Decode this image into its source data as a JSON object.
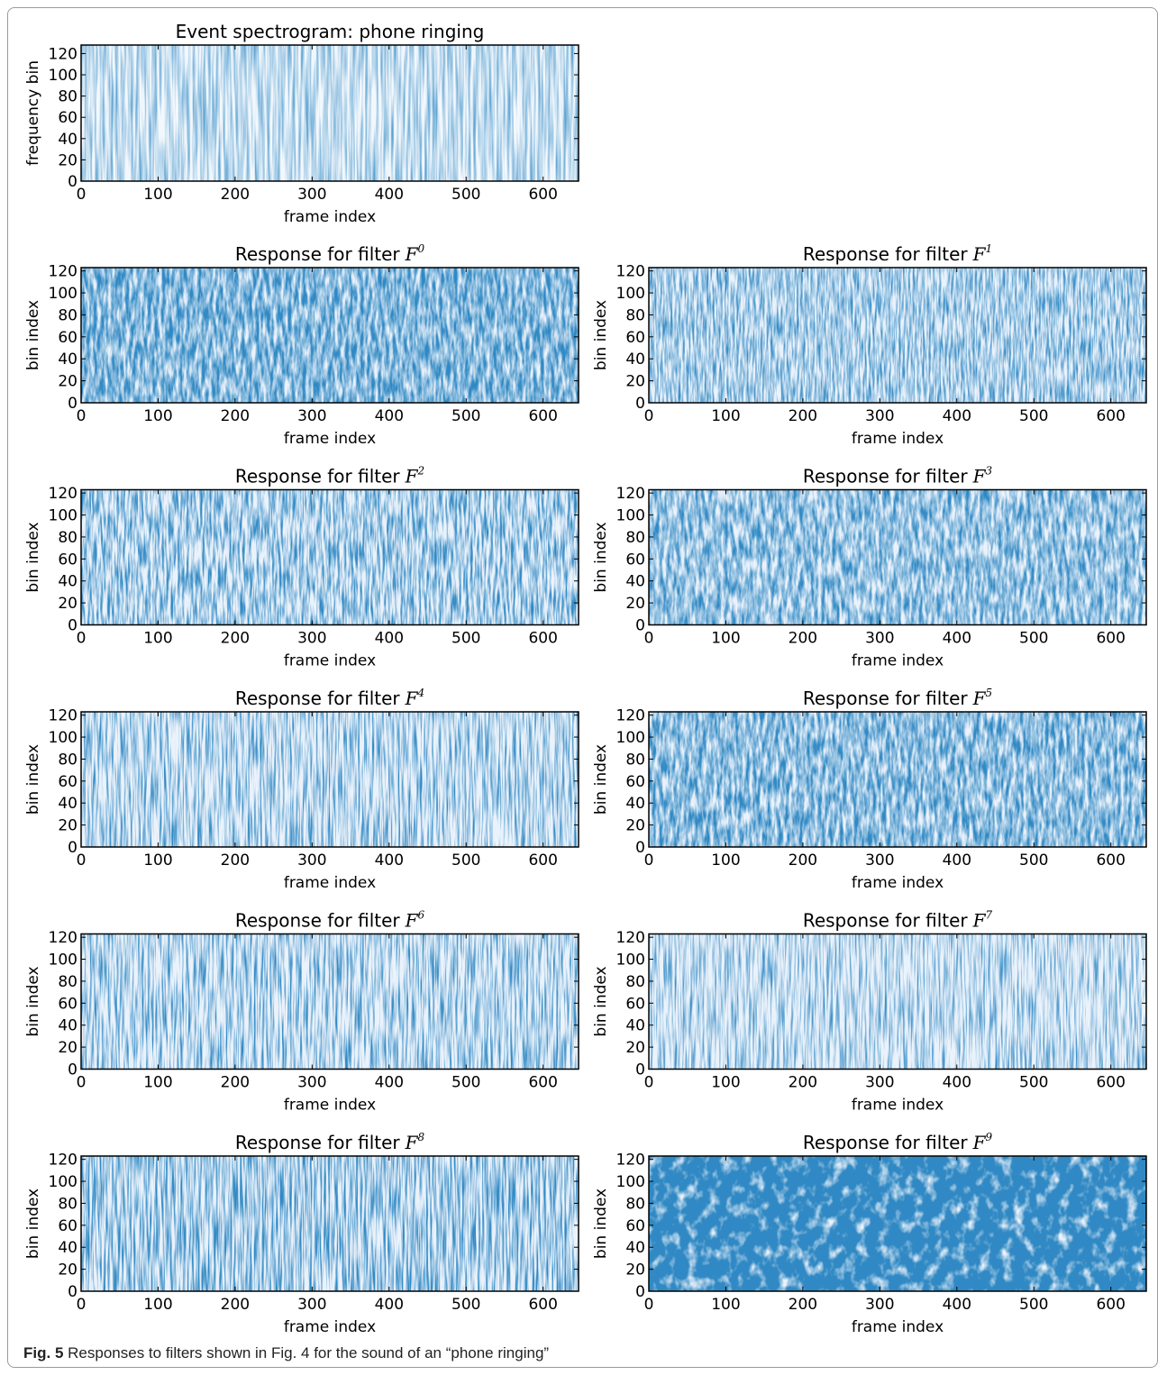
{
  "caption": {
    "label": "Fig. 5",
    "text": "Responses to filters shown in Fig. 4 for the sound of an “phone ringing”"
  },
  "chart_data": [
    {
      "type": "heatmap",
      "title": "Event spectrogram: phone ringing",
      "xlabel": "frame index",
      "ylabel": "frequency bin",
      "xlim": [
        0,
        646
      ],
      "ylim": [
        0,
        128
      ],
      "xticks": [
        0,
        100,
        200,
        300,
        400,
        500,
        600
      ],
      "yticks": [
        0,
        20,
        40,
        60,
        80,
        100,
        120
      ],
      "colormap": "Blues"
    },
    {
      "type": "heatmap",
      "title": "Response for filter",
      "symbol": "F",
      "index": "0",
      "xlabel": "frame index",
      "ylabel": "bin index",
      "xlim": [
        0,
        646
      ],
      "ylim": [
        0,
        123
      ],
      "xticks": [
        0,
        100,
        200,
        300,
        400,
        500,
        600
      ],
      "yticks": [
        0,
        20,
        40,
        60,
        80,
        100,
        120
      ],
      "colormap": "Blues"
    },
    {
      "type": "heatmap",
      "title": "Response for filter",
      "symbol": "F",
      "index": "1",
      "xlabel": "frame index",
      "ylabel": "bin index",
      "xlim": [
        0,
        646
      ],
      "ylim": [
        0,
        123
      ],
      "xticks": [
        0,
        100,
        200,
        300,
        400,
        500,
        600
      ],
      "yticks": [
        0,
        20,
        40,
        60,
        80,
        100,
        120
      ],
      "colormap": "Blues"
    },
    {
      "type": "heatmap",
      "title": "Response for filter",
      "symbol": "F",
      "index": "2",
      "xlabel": "frame index",
      "ylabel": "bin index",
      "xlim": [
        0,
        646
      ],
      "ylim": [
        0,
        123
      ],
      "xticks": [
        0,
        100,
        200,
        300,
        400,
        500,
        600
      ],
      "yticks": [
        0,
        20,
        40,
        60,
        80,
        100,
        120
      ],
      "colormap": "Blues"
    },
    {
      "type": "heatmap",
      "title": "Response for filter",
      "symbol": "F",
      "index": "3",
      "xlabel": "frame index",
      "ylabel": "bin index",
      "xlim": [
        0,
        646
      ],
      "ylim": [
        0,
        123
      ],
      "xticks": [
        0,
        100,
        200,
        300,
        400,
        500,
        600
      ],
      "yticks": [
        0,
        20,
        40,
        60,
        80,
        100,
        120
      ],
      "colormap": "Blues"
    },
    {
      "type": "heatmap",
      "title": "Response for filter",
      "symbol": "F",
      "index": "4",
      "xlabel": "frame index",
      "ylabel": "bin index",
      "xlim": [
        0,
        646
      ],
      "ylim": [
        0,
        123
      ],
      "xticks": [
        0,
        100,
        200,
        300,
        400,
        500,
        600
      ],
      "yticks": [
        0,
        20,
        40,
        60,
        80,
        100,
        120
      ],
      "colormap": "Blues"
    },
    {
      "type": "heatmap",
      "title": "Response for filter",
      "symbol": "F",
      "index": "5",
      "xlabel": "frame index",
      "ylabel": "bin index",
      "xlim": [
        0,
        646
      ],
      "ylim": [
        0,
        123
      ],
      "xticks": [
        0,
        100,
        200,
        300,
        400,
        500,
        600
      ],
      "yticks": [
        0,
        20,
        40,
        60,
        80,
        100,
        120
      ],
      "colormap": "Blues"
    },
    {
      "type": "heatmap",
      "title": "Response for filter",
      "symbol": "F",
      "index": "6",
      "xlabel": "frame index",
      "ylabel": "bin index",
      "xlim": [
        0,
        646
      ],
      "ylim": [
        0,
        123
      ],
      "xticks": [
        0,
        100,
        200,
        300,
        400,
        500,
        600
      ],
      "yticks": [
        0,
        20,
        40,
        60,
        80,
        100,
        120
      ],
      "colormap": "Blues"
    },
    {
      "type": "heatmap",
      "title": "Response for filter",
      "symbol": "F",
      "index": "7",
      "xlabel": "frame index",
      "ylabel": "bin index",
      "xlim": [
        0,
        646
      ],
      "ylim": [
        0,
        123
      ],
      "xticks": [
        0,
        100,
        200,
        300,
        400,
        500,
        600
      ],
      "yticks": [
        0,
        20,
        40,
        60,
        80,
        100,
        120
      ],
      "colormap": "Blues"
    },
    {
      "type": "heatmap",
      "title": "Response for filter",
      "symbol": "F",
      "index": "8",
      "xlabel": "frame index",
      "ylabel": "bin index",
      "xlim": [
        0,
        646
      ],
      "ylim": [
        0,
        123
      ],
      "xticks": [
        0,
        100,
        200,
        300,
        400,
        500,
        600
      ],
      "yticks": [
        0,
        20,
        40,
        60,
        80,
        100,
        120
      ],
      "colormap": "Blues"
    },
    {
      "type": "heatmap",
      "title": "Response for filter",
      "symbol": "F",
      "index": "9",
      "xlabel": "frame index",
      "ylabel": "bin index",
      "xlim": [
        0,
        646
      ],
      "ylim": [
        0,
        123
      ],
      "xticks": [
        0,
        100,
        200,
        300,
        400,
        500,
        600
      ],
      "yticks": [
        0,
        20,
        40,
        60,
        80,
        100,
        120
      ],
      "colormap": "Blues"
    }
  ]
}
